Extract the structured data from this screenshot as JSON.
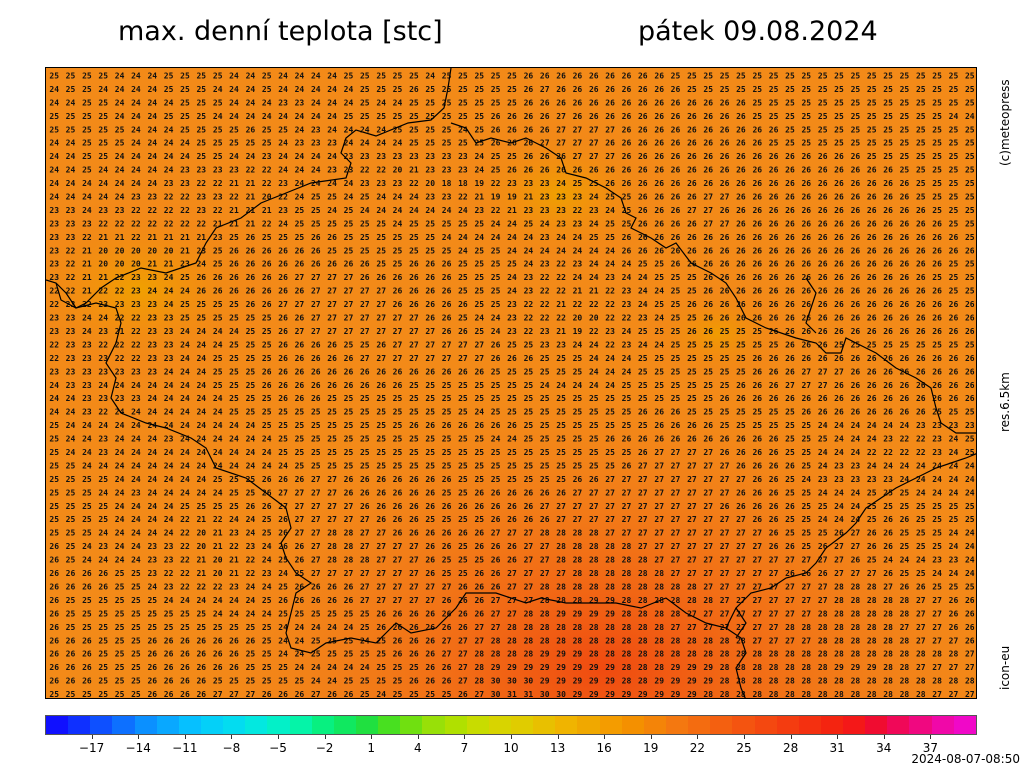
{
  "header": {
    "title": "max. denní teplota [stc]",
    "date": "pátek 09.08.2024"
  },
  "side_labels": {
    "copyright": "(c)meteopress",
    "resolution": "res.6.5km",
    "model": "icon-eu"
  },
  "footer": {
    "timestamp": "2024-08-07-08:50"
  },
  "map": {
    "description_rows": [
      "25 25 25 25 24 24 24 25 25 25 25 24 24 25 24 24 24 24 25 25 25 25 25 24 25 25 25 25 25 26 26 26 26 26 26 26 26 26 25 25 25 25 25 25 25 25 25 25 25 25 25 25 25 25 25 25 25",
      "24 25 25 24 24 24 24 25 25 25 24 24 24 25 24 24 24 24 24 25 25 25 26 25 25 25 25 25 25 26 27 26 26 26 26 26 26 26 26 25 25 25 25 25 25 25 25 25 25 25 25 25 25 25 25 25 25",
      "24 24 25 25 24 24 24 24 25 25 25 24 24 24 23 23 24 24 24 25 24 24 25 25 25 25 25 25 25 26 26 26 26 26 26 26 26 26 26 26 26 26 26 25 25 25 25 25 25 25 25 25 25 25 25 25 25",
      "25 25 25 25 24 24 24 25 25 25 24 24 24 24 24 24 24 24 25 25 25 25 25 25 25 25 25 26 26 26 26 27 26 26 26 26 26 26 26 26 26 26 26 25 25 25 25 25 25 25 25 25 25 25 25 24 24",
      "25 25 25 25 25 24 24 24 25 25 25 25 26 25 25 24 23 24 24 24 24 25 25 25 25 24 25 26 26 26 26 27 27 27 27 26 26 26 26 26 26 26 26 26 26 25 25 25 25 25 25 25 25 25 25 25 25",
      "24 24 25 25 25 24 24 24 24 25 25 25 25 25 24 23 23 23 24 24 24 24 25 25 25 25 25 26 26 26 27 27 27 27 26 26 26 26 26 26 26 26 26 26 25 25 25 25 25 25 25 25 25 25 25 25 25",
      "24 24 25 25 24 24 24 24 24 25 25 24 24 23 24 24 24 24 23 23 23 23 23 23 23 23 24 25 25 26 26 26 27 27 27 26 26 26 26 26 26 26 26 26 26 26 26 26 26 26 25 25 25 25 25 25 25",
      "24 24 25 24 24 24 24 24 23 23 23 23 22 22 24 24 24 23 23 22 22 20 21 23 23 23 24 25 26 26 26 26 26 26 26 26 26 26 26 26 26 26 26 26 26 26 26 26 26 26 26 26 25 25 25 25 25",
      "24 24 24 24 24 24 24 23 23 22 22 21 21 22 23 24 24 24 24 23 23 23 22 20 18 18 19 22 23 23 23 24 25 25 26 26 26 26 26 26 26 26 26 26 26 26 26 26 26 26 26 26 26 25 25 25 25",
      "24 24 24 24 24 23 23 22 22 23 23 22 21 20 22 24 25 25 24 25 24 24 24 23 23 22 21 19 19 21 23 23 23 24 25 25 26 26 26 26 27 27 26 26 26 26 26 26 26 26 26 26 26 25 25 25 25",
      "23 23 24 23 23 22 22 22 22 23 22 21 21 21 23 25 25 24 25 24 24 24 24 24 24 24 23 22 21 23 23 23 22 23 24 25 26 26 26 27 27 26 26 26 26 26 26 26 26 26 26 26 26 26 25 25 25",
      "23 23 23 22 22 22 22 22 22 22 21 21 21 22 24 25 25 25 25 25 25 24 25 25 25 25 25 24 24 25 24 23 23 24 25 25 26 26 26 26 27 27 26 26 26 26 26 26 26 26 26 26 26 26 26 25 25",
      "23 23 22 21 21 22 21 21 21 21 23 25 26 25 25 25 26 26 25 25 25 25 25 25 24 24 24 24 24 24 23 24 24 25 25 26 26 26 26 26 26 26 26 26 26 26 26 26 26 26 26 26 26 26 26 26 25",
      "23 22 21 20 20 20 20 20 21 23 25 26 26 26 26 26 26 25 25 25 25 25 25 25 25 24 25 25 24 24 24 24 24 24 24 26 26 26 26 26 26 26 26 26 26 26 26 26 26 26 26 26 26 26 26 26 26",
      "23 22 21 20 20 20 21 21 23 24 25 26 26 26 26 26 26 26 26 26 25 25 26 26 26 25 25 25 25 24 23 22 23 24 24 24 25 25 26 26 26 26 26 26 26 26 26 26 26 26 26 26 26 26 26 25 25",
      "23 22 21 21 22 23 23 24 25 26 26 26 26 26 26 27 27 27 27 26 26 26 26 26 26 25 25 25 24 23 22 22 24 24 23 24 24 25 25 25 26 26 26 26 26 26 26 26 26 26 26 26 26 26 25 25 25",
      "22 22 21 22 22 23 24 24 24 26 26 26 26 26 26 26 27 27 27 27 27 26 26 26 26 25 25 25 24 23 22 22 21 21 22 23 24 24 25 25 26 26 26 26 26 26 26 26 26 26 26 26 26 26 26 25 25",
      "22 23 22 23 23 23 23 24 25 25 25 25 26 26 27 27 27 27 27 27 27 26 26 26 26 26 25 25 23 22 22 21 22 22 22 23 24 25 25 26 26 26 26 26 26 26 26 26 26 26 26 26 26 26 26 26 26",
      "23 23 24 24 22 22 23 23 25 25 25 25 25 25 26 26 27 27 27 27 27 27 27 26 26 25 24 24 23 22 22 22 20 20 22 22 23 24 25 25 26 26 26 26 26 26 26 26 26 26 26 26 26 26 26 26 26",
      "23 23 24 23 21 22 23 23 24 24 24 24 25 25 26 27 27 27 27 27 27 27 27 27 26 26 25 24 23 22 23 21 19 22 23 24 25 25 25 26 26 25 25 25 26 26 26 26 26 26 26 26 26 26 26 26 26",
      "22 23 23 22 22 22 23 23 24 24 24 25 25 25 26 26 26 26 25 25 26 27 27 27 27 27 27 26 25 25 23 23 24 24 22 23 24 24 25 25 25 25 25 25 25 26 26 26 25 25 25 25 25 25 25 25 25",
      "22 23 23 23 22 22 23 23 24 24 25 25 25 25 26 26 26 26 26 27 27 27 27 27 27 27 27 26 26 26 25 25 25 24 24 24 25 25 25 25 25 25 25 26 26 26 26 26 26 26 26 26 26 26 26 26 26",
      "23 23 23 23 23 23 23 24 24 24 25 25 25 26 26 26 26 26 26 26 26 26 26 26 26 26 26 25 25 25 25 25 25 24 24 24 25 25 25 25 25 25 25 26 26 26 27 27 27 26 26 26 26 26 26 26 26",
      "24 23 23 24 24 24 24 24 24 24 25 25 25 26 26 26 26 26 26 26 26 26 25 25 25 25 25 25 25 25 24 24 24 24 24 25 25 25 25 25 25 25 26 26 26 27 27 27 26 26 26 26 26 26 26 26 26",
      "24 24 23 23 23 23 24 24 24 24 24 25 25 25 26 26 26 25 25 25 25 25 25 25 25 25 25 25 25 25 25 25 25 25 25 25 25 25 25 25 25 26 26 26 26 26 26 26 26 26 26 26 26 26 26 26 26",
      "24 24 23 22 24 24 24 24 24 24 24 25 25 25 25 25 25 25 25 25 25 25 25 25 25 25 24 25 25 25 25 25 25 25 25 25 26 26 26 25 25 25 25 25 25 25 26 26 26 26 26 26 26 26 25 25 25",
      "25 24 24 24 24 24 24 24 24 24 24 24 24 25 25 25 25 25 25 25 25 25 26 26 26 26 26 26 26 25 25 25 25 25 25 25 25 26 26 26 26 25 25 25 25 25 25 24 24 24 24 24 24 23 23 23 23",
      "25 24 24 23 24 24 24 23 24 24 24 24 24 24 25 25 25 25 25 25 25 25 25 25 25 25 25 24 24 25 25 25 25 25 26 26 26 26 26 26 26 26 26 26 26 25 25 25 24 24 24 23 22 22 23 24 25",
      "25 24 24 23 24 24 24 24 24 24 24 24 24 24 25 25 25 25 25 25 25 25 25 25 25 25 25 25 25 25 25 25 25 25 25 25 26 27 27 27 27 26 26 26 26 25 25 24 24 24 22 22 22 22 23 24 25",
      "25 25 24 24 24 24 24 24 24 24 24 24 24 24 24 25 25 25 25 25 25 25 25 25 25 25 25 25 25 25 25 25 25 25 25 26 27 27 27 27 27 27 26 26 26 26 25 24 23 23 24 24 24 24 24 24 24",
      "25 25 25 25 24 24 24 24 24 24 25 25 25 26 26 26 27 27 26 26 26 26 26 26 26 25 25 25 25 25 25 25 26 26 27 27 27 27 27 27 27 27 27 26 26 25 24 23 23 23 23 23 24 24 24 24 24",
      "25 25 25 24 24 23 24 24 24 24 24 25 25 26 27 27 27 27 26 26 26 26 26 26 25 25 26 26 26 26 26 26 27 27 27 27 27 27 27 27 27 27 26 26 26 25 25 24 24 24 25 25 25 24 24 24 24",
      "25 25 25 25 24 24 24 24 25 25 25 25 26 26 27 27 27 27 27 26 26 26 26 26 26 26 26 26 26 26 27 27 27 27 27 27 27 27 27 27 27 26 26 26 26 26 25 25 24 24 25 25 25 25 25 25 25",
      "25 25 25 25 24 24 24 24 22 21 22 24 24 25 26 27 27 27 27 27 26 26 26 25 25 25 25 26 26 26 26 27 27 27 27 27 27 27 27 27 27 27 27 26 26 25 25 24 24 24 25 26 26 25 25 25 25",
      "25 25 25 24 24 24 24 24 22 20 21 23 24 25 26 27 27 28 28 27 27 26 26 26 26 26 26 27 27 27 28 28 28 28 27 27 27 27 27 27 27 27 27 27 26 25 25 25 26 27 26 26 25 25 25 24 24",
      "26 25 24 23 24 24 23 23 22 20 21 22 23 24 26 26 27 28 28 27 27 27 27 26 26 25 26 26 26 27 27 28 28 28 28 28 27 27 27 27 27 27 27 27 26 26 25 26 27 27 26 26 25 25 25 24 24",
      "26 25 24 24 24 24 23 23 22 21 20 21 22 24 25 26 27 28 28 28 27 27 27 26 25 25 25 26 26 27 27 28 28 28 28 28 28 27 27 27 27 27 27 27 27 27 27 27 27 26 25 24 24 24 23 23 24",
      "26 26 26 26 25 25 23 22 22 21 20 21 22 23 24 25 27 27 27 27 27 27 27 26 25 25 26 26 27 27 27 27 28 28 28 28 28 28 27 27 27 27 27 27 27 26 26 26 27 27 27 26 25 25 24 24 24",
      "26 26 26 26 25 25 24 23 22 22 22 23 24 24 25 26 26 26 26 27 27 27 27 27 27 26 26 26 27 27 28 28 28 28 28 28 28 28 28 28 27 27 27 27 27 27 27 27 28 28 28 27 26 26 25 25 25",
      "26 25 25 25 25 25 25 24 24 24 24 24 24 25 26 26 26 26 26 27 27 27 27 27 26 26 26 27 27 27 28 28 28 29 29 28 28 28 28 28 28 27 27 27 27 27 27 27 28 28 28 28 28 27 27 26 26",
      "26 25 25 25 25 25 25 25 25 25 24 24 24 24 25 25 25 25 25 25 26 26 26 26 26 26 26 27 27 28 28 29 29 29 29 28 28 28 28 27 27 27 27 27 27 27 27 28 28 28 28 28 28 27 27 26 26",
      "26 25 25 25 25 25 25 25 25 25 25 25 25 25 24 24 24 24 24 25 26 26 26 26 26 26 27 27 28 28 28 28 28 28 28 28 28 28 27 27 27 27 27 27 27 28 28 28 28 28 28 28 27 27 27 26 26",
      "26 26 26 25 25 25 26 26 26 26 26 26 26 25 24 24 25 25 25 24 25 26 26 26 27 27 27 28 28 28 28 28 28 28 28 28 28 28 28 28 28 28 28 27 27 27 27 28 28 28 28 28 28 27 27 27 26",
      "26 26 26 25 25 25 26 26 26 26 26 26 25 25 24 24 25 25 25 25 25 26 26 26 27 27 28 28 28 28 29 29 29 28 28 28 28 28 28 28 28 28 28 28 28 28 28 28 28 28 28 28 28 28 28 28 27",
      "26 26 26 25 25 25 26 26 26 26 26 26 25 25 25 24 24 24 24 24 25 25 25 26 26 27 28 29 29 29 29 29 29 29 29 28 28 28 29 29 29 28 28 28 28 28 28 28 29 29 29 28 28 27 27 27 27",
      "26 26 26 25 25 25 26 26 26 26 25 25 25 25 25 25 24 24 25 25 25 25 26 26 26 27 28 30 30 30 29 29 29 29 29 28 28 29 29 29 29 28 28 28 28 28 28 28 28 28 28 28 28 28 28 28 28",
      "25 25 25 25 25 25 26 26 26 26 27 27 27 26 26 26 27 26 26 25 24 25 25 25 25 26 27 30 31 31 30 30 29 29 29 29 29 29 29 29 28 28 28 28 28 28 28 28 28 28 28 28 28 28 27 27 27"
    ]
  },
  "colorbar": {
    "tick_values": [
      "-17",
      "-14",
      "-11",
      "-8",
      "-5",
      "-2",
      "1",
      "4",
      "7",
      "10",
      "13",
      "16",
      "19",
      "22",
      "25",
      "28",
      "31",
      "34",
      "37"
    ],
    "min": -20,
    "max": 40,
    "colors": [
      "#1010ff",
      "#0f30ff",
      "#0e50ff",
      "#0d70ff",
      "#0b90ff",
      "#09a8ff",
      "#06c0ff",
      "#04d0f8",
      "#03dcf0",
      "#03e8e0",
      "#03f0c8",
      "#05f4a8",
      "#08f080",
      "#10e860",
      "#20e040",
      "#48e020",
      "#70e010",
      "#98e008",
      "#b0e000",
      "#c8dc00",
      "#d8d400",
      "#e0cc00",
      "#e8c000",
      "#f0b400",
      "#f0a800",
      "#f49c00",
      "#f49000",
      "#f48408",
      "#f47810",
      "#f46c10",
      "#f46010",
      "#f45410",
      "#f44810",
      "#f43c10",
      "#f43010",
      "#f42410",
      "#f41818",
      "#f00c30",
      "#f00858",
      "#f00880",
      "#f008a8",
      "#f008c8"
    ]
  }
}
